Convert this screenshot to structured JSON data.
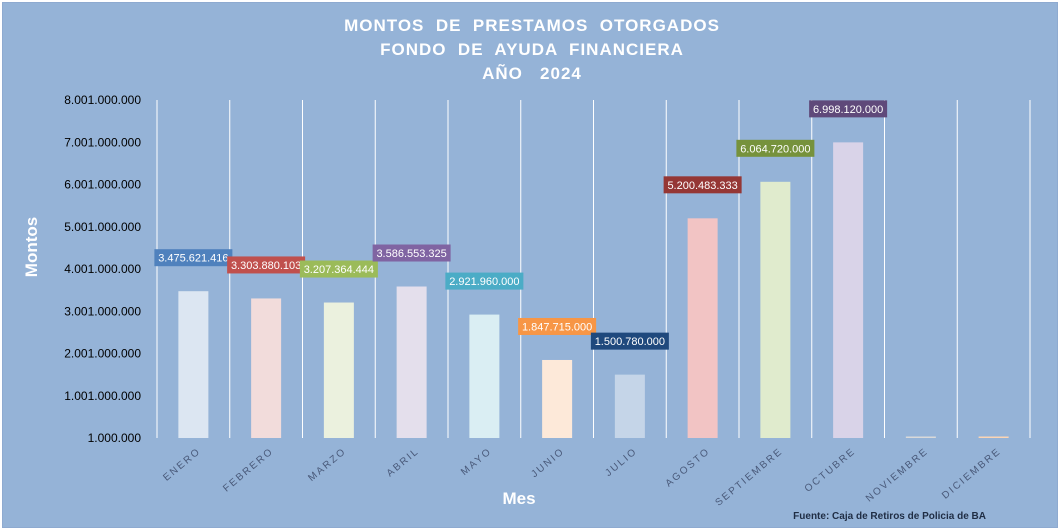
{
  "chart_data": {
    "type": "bar",
    "title": [
      "MONTOS  DE  PRESTAMOS  OTORGADOS",
      "FONDO  DE  AYUDA  FINANCIERA",
      "AÑO   2024"
    ],
    "xlabel": "Mes",
    "ylabel": "Montos",
    "categories": [
      "ENERO",
      "FEBRERO",
      "MARZO",
      "ABRIL",
      "MAYO",
      "JUNIO",
      "JULIO",
      "AGOSTO",
      "SEPTIEMBRE",
      "OCTUBRE",
      "NOVIEMBRE",
      "DICIEMBRE"
    ],
    "values": [
      3475621416,
      3303880103,
      3207364444,
      3586553325,
      2921960000,
      1847715000,
      1500780000,
      5200483333,
      6064720000,
      6998120000,
      0,
      0
    ],
    "data_labels": [
      "3.475.621.416",
      "3.303.880.103",
      "3.207.364.444",
      "3.586.553.325",
      "2.921.960.000",
      "1.847.715.000",
      "1.500.780.000",
      "5.200.483.333",
      "6.064.720.000",
      "6.998.120.000",
      "",
      ""
    ],
    "ylim": [
      1000000,
      8001000000
    ],
    "yticks": [
      1000000,
      1001000000,
      2001000000,
      3001000000,
      4001000000,
      5001000000,
      6001000000,
      7001000000,
      8001000000
    ],
    "ytick_labels": [
      "1.000.000",
      "1.001.000.000",
      "2.001.000.000",
      "3.001.000.000",
      "4.001.000.000",
      "5.001.000.000",
      "6.001.000.000",
      "7.001.000.000",
      "8.001.000.000"
    ],
    "bar_colors": [
      "#dce6f2",
      "#f2dcdb",
      "#ebf1de",
      "#e4dfec",
      "#daeef3",
      "#fde9d9",
      "#c5d5e8",
      "#f2c4c4",
      "#e0ebcd",
      "#d9d3e8",
      "#d9d9d9",
      "#fcd5b4"
    ],
    "label_colors": [
      "#4f81bd",
      "#c0504d",
      "#9bbb59",
      "#8064a2",
      "#4bacc6",
      "#f79646",
      "#1f497d",
      "#953735",
      "#76923c",
      "#5f497a",
      "#95b3d7",
      "#95b3d7"
    ],
    "grid": "vertical",
    "legend": "none"
  },
  "source": "Fuente: Caja de Retiros de Policia de BA",
  "colors": {
    "background": "#95b3d7",
    "text": "#ffffff"
  }
}
